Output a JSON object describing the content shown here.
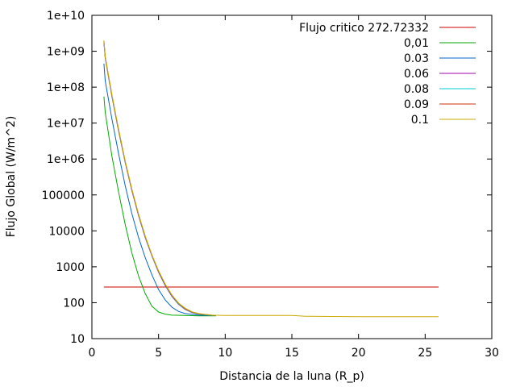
{
  "chart_data": {
    "type": "line",
    "xlabel": "Distancia de la luna (R_p)",
    "ylabel": "Flujo Global (W/m^2)",
    "xlim": [
      0,
      30
    ],
    "ylim": [
      10,
      10000000000
    ],
    "yscale": "log",
    "grid": false,
    "legend_position": "top-right",
    "x_ticks": [
      {
        "value": 0,
        "label": "0"
      },
      {
        "value": 5,
        "label": "5"
      },
      {
        "value": 10,
        "label": "10"
      },
      {
        "value": 15,
        "label": "15"
      },
      {
        "value": 20,
        "label": "20"
      },
      {
        "value": 25,
        "label": "25"
      },
      {
        "value": 30,
        "label": "30"
      }
    ],
    "y_ticks": [
      {
        "value": 10,
        "label": "10"
      },
      {
        "value": 100,
        "label": "100"
      },
      {
        "value": 1000,
        "label": "1000"
      },
      {
        "value": 10000,
        "label": "10000"
      },
      {
        "value": 100000,
        "label": "100000"
      },
      {
        "value": 1000000,
        "label": "1e+06"
      },
      {
        "value": 10000000,
        "label": "1e+07"
      },
      {
        "value": 100000000,
        "label": "1e+08"
      },
      {
        "value": 1000000000,
        "label": "1e+09"
      },
      {
        "value": 10000000000,
        "label": "1e+10"
      }
    ],
    "series": [
      {
        "name": "Flujo critico 272.72332",
        "color": "#cc0000",
        "x": [
          0.9,
          26
        ],
        "y": [
          272.7,
          272.7
        ]
      },
      {
        "name": "0,01",
        "color": "#00aa00",
        "x": [
          0.9,
          1.0,
          1.5,
          2.0,
          2.5,
          3.0,
          3.5,
          4.0,
          4.5,
          5.0,
          5.5,
          6.0,
          7.0,
          8.0,
          9.0,
          9.3
        ],
        "y": [
          55000000,
          20000000,
          1200000,
          120000,
          15000,
          2400,
          550,
          180,
          80,
          55,
          48,
          45,
          44,
          43,
          43,
          43
        ]
      },
      {
        "name": "0.03",
        "color": "#0066cc",
        "x": [
          0.9,
          1.0,
          1.5,
          2.0,
          2.5,
          3.0,
          3.5,
          4.0,
          4.5,
          5.0,
          5.5,
          6.0,
          6.5,
          7.0,
          8.0,
          9.0
        ],
        "y": [
          450000000,
          150000000,
          13000000,
          1400000,
          180000,
          30000,
          6500,
          1800,
          600,
          230,
          120,
          75,
          57,
          50,
          45,
          44
        ]
      },
      {
        "name": "0.06",
        "color": "#aa00aa",
        "x": [
          0.9,
          1.0,
          1.5,
          2.0,
          2.5,
          3.0,
          3.5,
          4.0,
          4.5,
          5.0,
          5.5,
          6.0,
          6.5,
          7.0,
          7.5,
          8.0,
          9.0
        ],
        "y": [
          1800000000,
          650000000,
          55000000,
          6000000,
          800000,
          130000,
          26000,
          6500,
          2000,
          700,
          300,
          150,
          90,
          65,
          53,
          48,
          44
        ]
      },
      {
        "name": "0.08",
        "color": "#00cccc",
        "x": [
          0.9,
          1.0,
          1.5,
          2.0,
          2.5,
          3.0,
          3.5,
          4.0,
          4.5,
          5.0,
          5.5,
          6.0,
          6.5,
          7.0,
          7.5,
          8.0,
          9.0
        ],
        "y": [
          1850000000,
          670000000,
          57000000,
          6200000,
          820000,
          135000,
          27000,
          6700,
          2050,
          720,
          310,
          155,
          92,
          66,
          54,
          48,
          44
        ]
      },
      {
        "name": "0.09",
        "color": "#cc3300",
        "x": [
          0.9,
          1.0,
          1.5,
          2.0,
          2.5,
          3.0,
          3.5,
          4.0,
          4.5,
          5.0,
          5.5,
          6.0,
          6.5,
          7.0,
          7.5,
          8.0,
          9.0,
          9.3
        ],
        "y": [
          1900000000,
          700000000,
          60000000,
          6500000,
          850000,
          140000,
          28000,
          7000,
          2100,
          750,
          320,
          160,
          95,
          68,
          55,
          49,
          45,
          44
        ]
      },
      {
        "name": "0.1",
        "color": "#ccaa00",
        "x": [
          0.9,
          1.0,
          1.5,
          2.0,
          2.5,
          3.0,
          3.5,
          4.0,
          4.5,
          5.0,
          5.5,
          6.0,
          6.5,
          7.0,
          7.5,
          8.0,
          9.0,
          10.0,
          15.0,
          16.0,
          20.0,
          26.0
        ],
        "y": [
          2000000000,
          720000000,
          62000000,
          6700000,
          880000,
          145000,
          29000,
          7200,
          2150,
          770,
          330,
          165,
          97,
          70,
          56,
          50,
          45,
          44,
          44,
          42,
          41,
          41
        ]
      }
    ]
  }
}
